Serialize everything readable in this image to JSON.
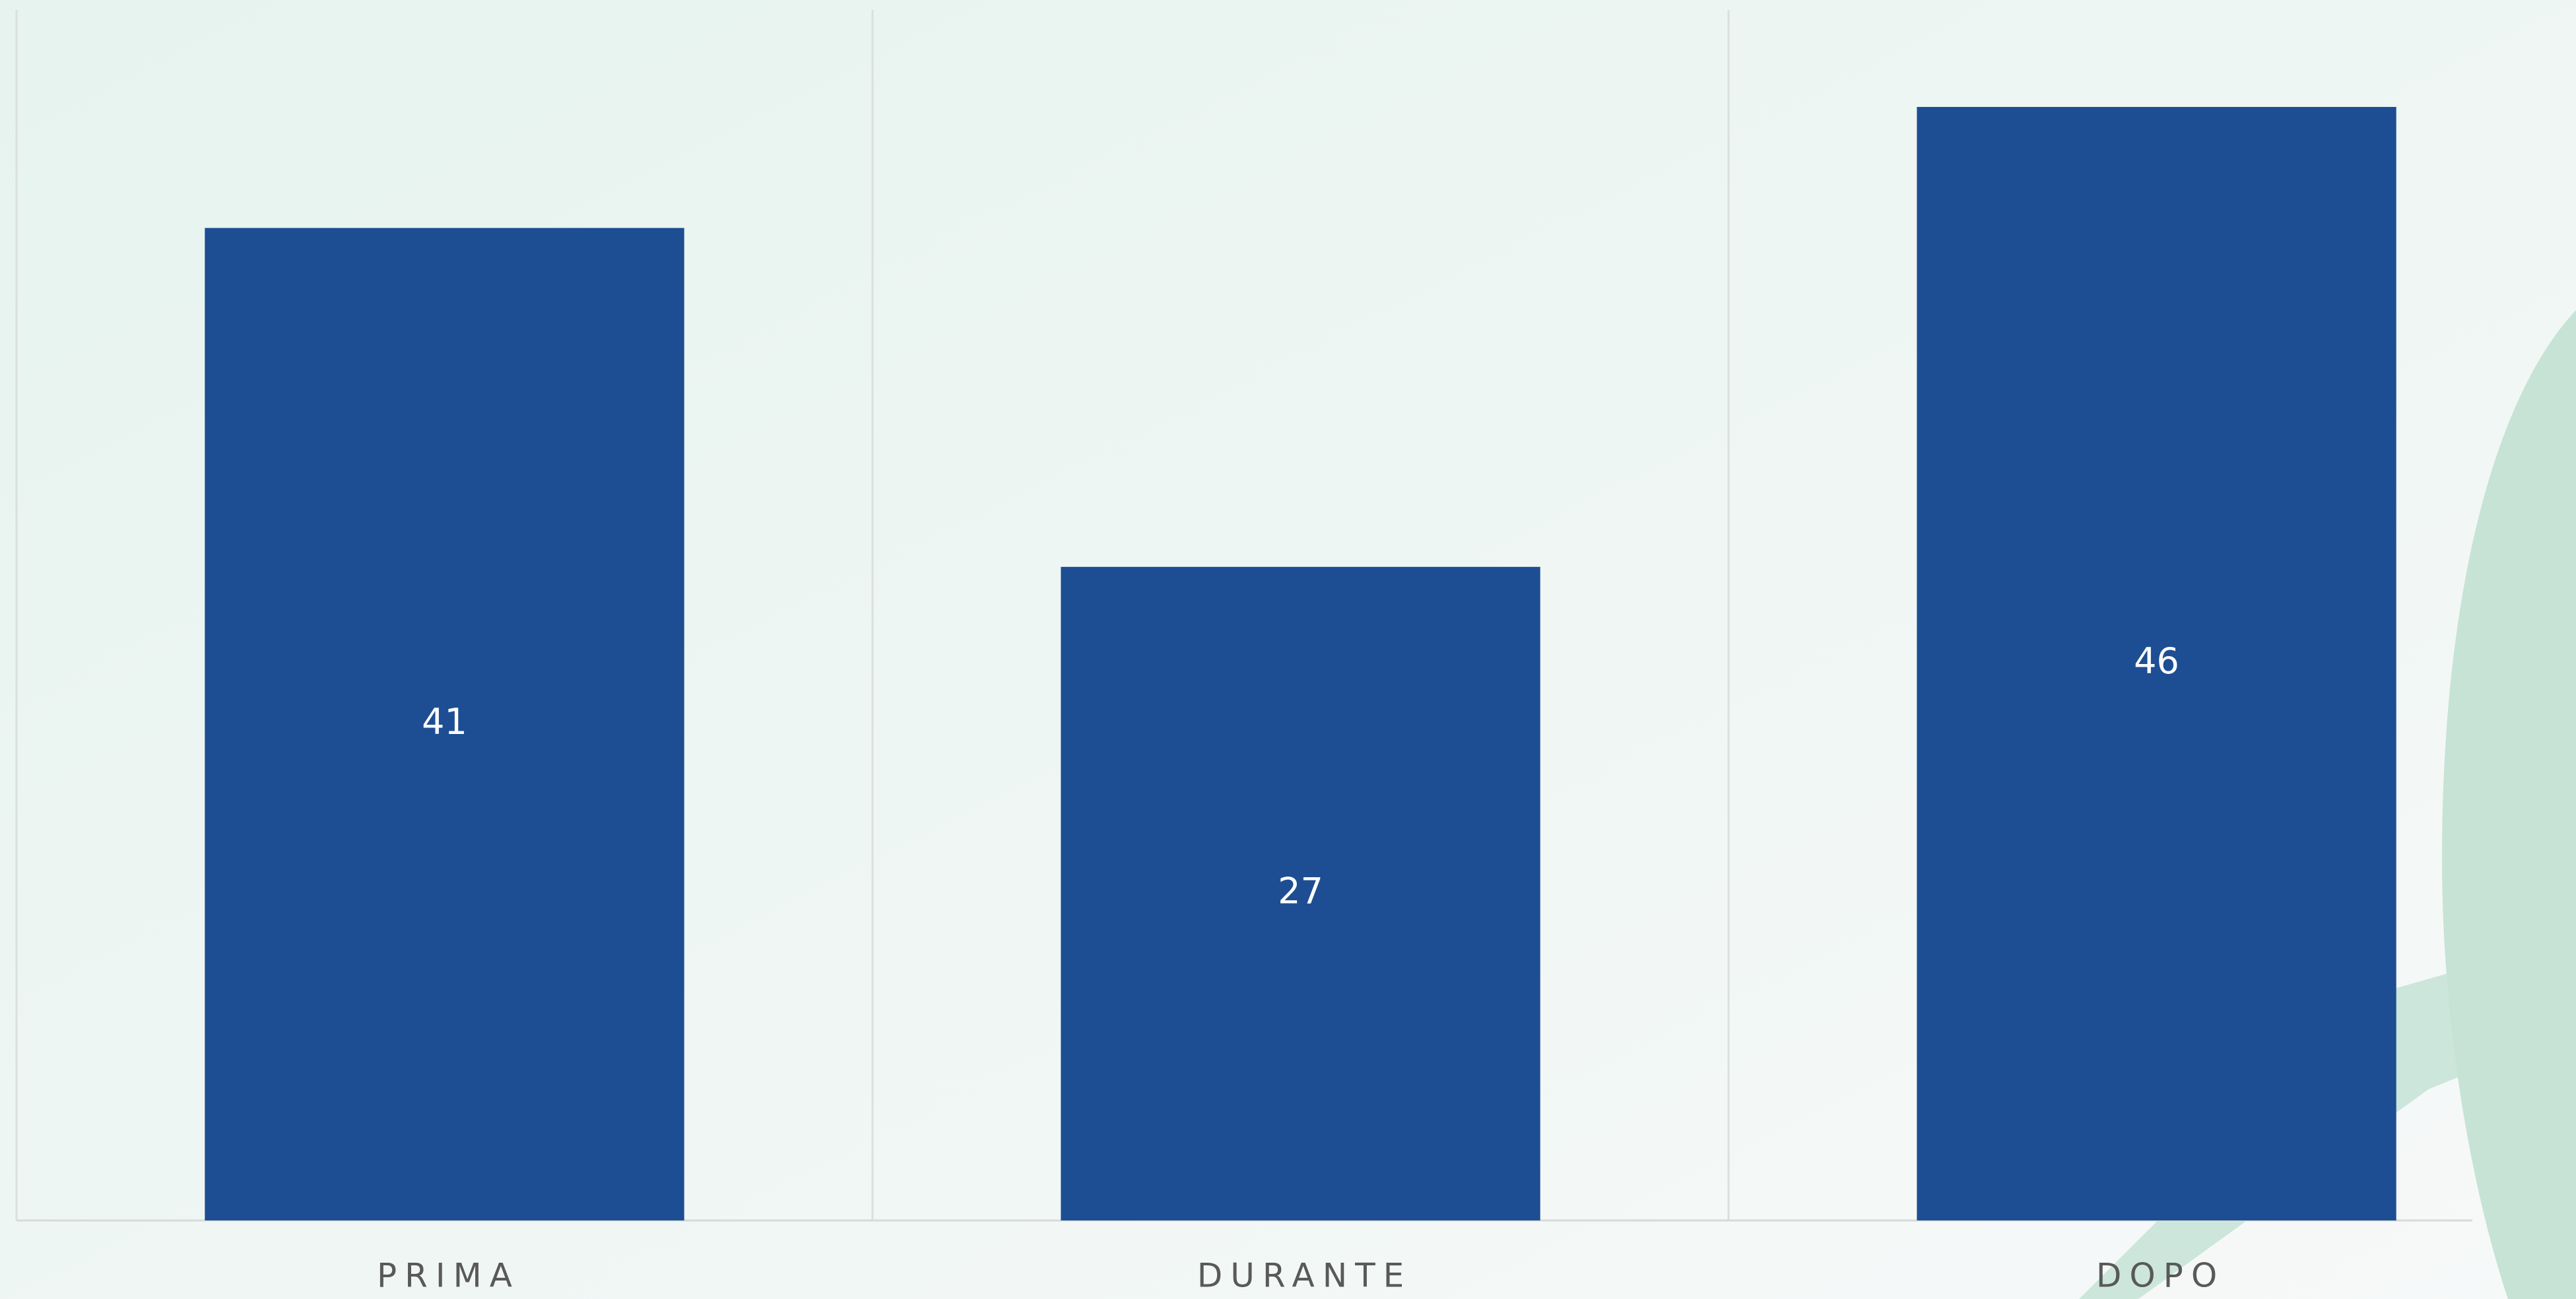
{
  "chart_data": {
    "type": "bar",
    "categories": [
      "PRIMA",
      "DURANTE",
      "DOPO"
    ],
    "values": [
      41,
      27,
      46
    ],
    "color": "#1d4e93"
  }
}
